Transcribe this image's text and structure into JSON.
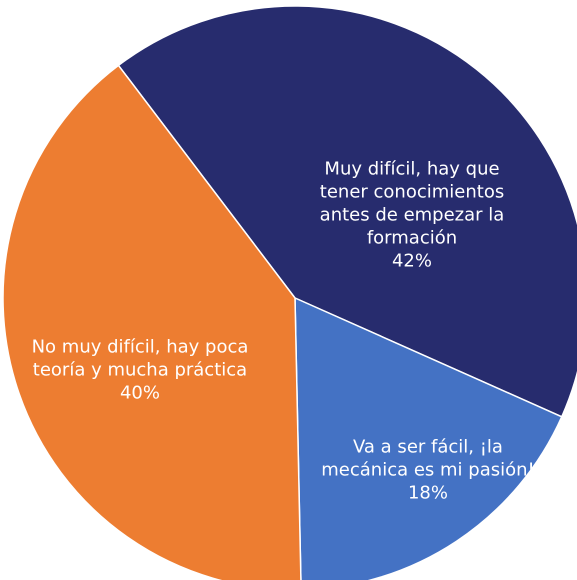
{
  "chart_data": {
    "type": "pie",
    "categories": [
      "Muy difícil, hay que tener conocimientos antes de empezar la formación",
      "Va a ser fácil, ¡la mecánica es mi pasión!",
      "No muy difícil, hay poca teoría y mucha práctica"
    ],
    "values": [
      42,
      18,
      40
    ],
    "value_labels": [
      "42%",
      "18%",
      "40%"
    ],
    "colors": [
      "#272c6e",
      "#4472c4",
      "#ed7d31"
    ]
  }
}
